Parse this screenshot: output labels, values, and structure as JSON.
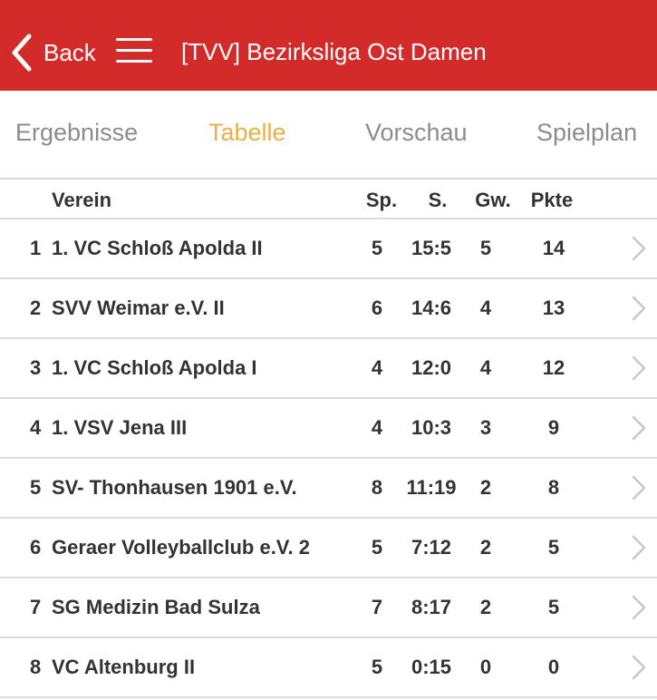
{
  "navbar": {
    "back_label": "Back",
    "title": "[TVV] Bezirksliga Ost Damen",
    "background": "#d32a2a"
  },
  "tabs": [
    {
      "label": "Ergebnisse",
      "active": false
    },
    {
      "label": "Tabelle",
      "active": true
    },
    {
      "label": "Vorschau",
      "active": false
    },
    {
      "label": "Spielplan",
      "active": false
    }
  ],
  "table": {
    "headers": {
      "team": "Verein",
      "played": "Sp.",
      "sets": "S.",
      "won": "Gw.",
      "points": "Pkte"
    },
    "rows": [
      {
        "rank": "1",
        "team": "1. VC Schloß Apolda II",
        "played": "5",
        "sets": "15:5",
        "won": "5",
        "points": "14"
      },
      {
        "rank": "2",
        "team": "SVV Weimar e.V. II",
        "played": "6",
        "sets": "14:6",
        "won": "4",
        "points": "13"
      },
      {
        "rank": "3",
        "team": "1. VC Schloß Apolda I",
        "played": "4",
        "sets": "12:0",
        "won": "4",
        "points": "12"
      },
      {
        "rank": "4",
        "team": "1. VSV Jena III",
        "played": "4",
        "sets": "10:3",
        "won": "3",
        "points": "9"
      },
      {
        "rank": "5",
        "team": "SV- Thonhausen 1901 e.V.",
        "played": "8",
        "sets": "11:19",
        "won": "2",
        "points": "8"
      },
      {
        "rank": "6",
        "team": "Geraer Volleyballclub e.V. 2",
        "played": "5",
        "sets": "7:12",
        "won": "2",
        "points": "5"
      },
      {
        "rank": "7",
        "team": "SG Medizin Bad Sulza",
        "played": "7",
        "sets": "8:17",
        "won": "2",
        "points": "5"
      },
      {
        "rank": "8",
        "team": "VC Altenburg II",
        "played": "5",
        "sets": "0:15",
        "won": "0",
        "points": "0"
      }
    ]
  },
  "colors": {
    "accent_tab": "#e9b04a",
    "inactive_tab": "#8c8c8c"
  }
}
